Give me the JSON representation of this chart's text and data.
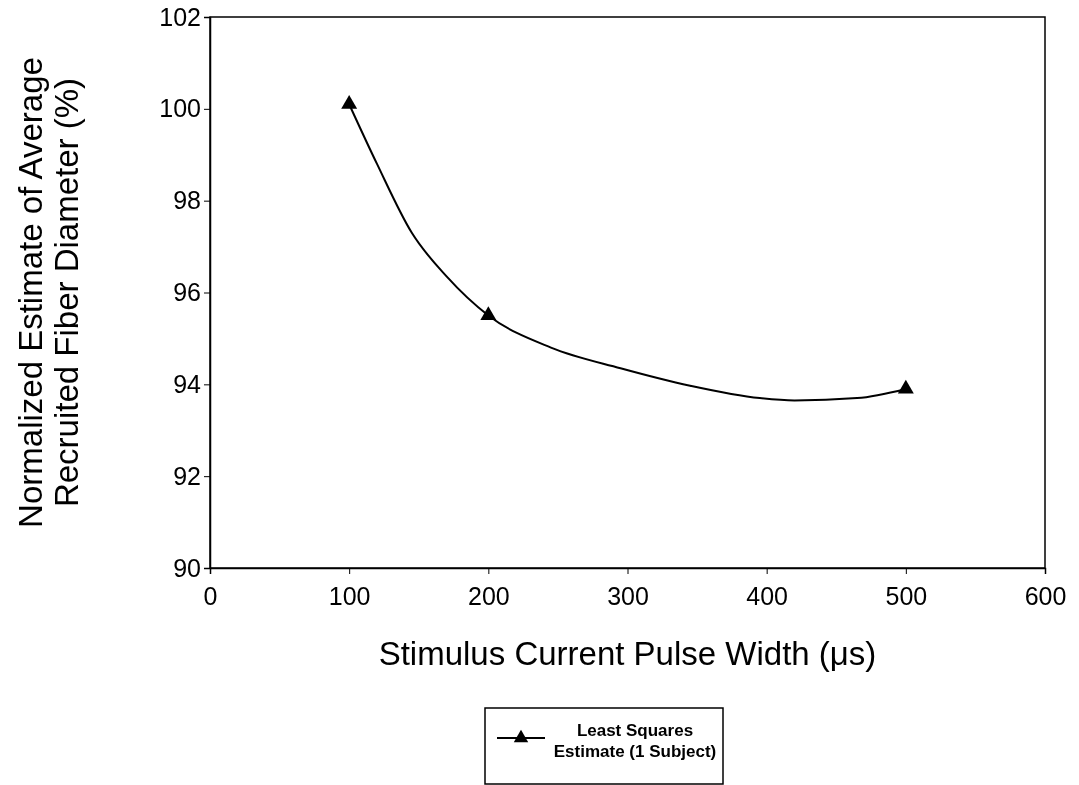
{
  "chart_data": {
    "type": "scatter",
    "xlabel": "Stimulus Current Pulse Width (μs)",
    "ylabel": "Normalized Estimate of Average Recruited Fiber Diameter (%)",
    "xlim": [
      0,
      600
    ],
    "xticks": [
      0,
      100,
      200,
      300,
      400,
      500,
      600
    ],
    "ylim": [
      90,
      102
    ],
    "yticks": [
      90,
      92,
      94,
      96,
      98,
      100,
      102
    ],
    "grid": false,
    "legend": "bottom",
    "marker": "triangle",
    "series": [
      {
        "type": "line",
        "color": "#000000",
        "marker": "none",
        "x": [
          100,
          120,
          145,
          170,
          200,
          245,
          295,
          345,
          395,
          420,
          465,
          500
        ],
        "values": [
          100.1,
          98.8,
          97.3,
          96.35,
          95.5,
          94.8,
          94.35,
          93.97,
          93.7,
          93.65,
          93.7,
          93.9
        ]
      },
      {
        "name": "Least Squares Estimate (1 Subject)",
        "color": "#000000",
        "x": [
          100,
          200,
          500
        ],
        "values": [
          100.1,
          95.5,
          93.9
        ]
      }
    ]
  }
}
